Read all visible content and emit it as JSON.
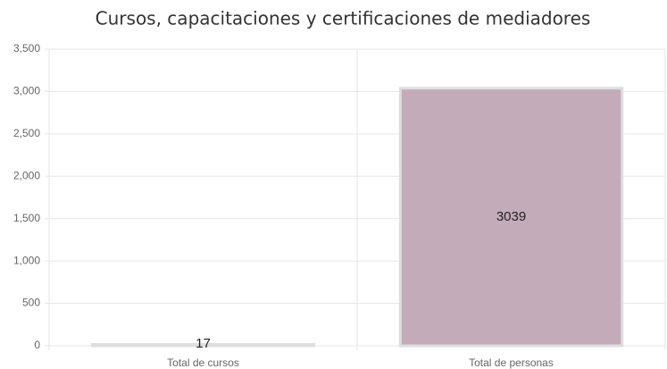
{
  "chart_data": {
    "type": "bar",
    "title": "Cursos, capacitaciones y certificaciones de mediadores",
    "categories": [
      "Total de cursos",
      "Total de personas"
    ],
    "values": [
      17,
      3039
    ],
    "color": "#c4abb9",
    "ylim": [
      0,
      3500
    ],
    "yticks": [
      0,
      500,
      {
        "value": 1000,
        "label": "1,000"
      },
      {
        "value": 1500,
        "label": "1,500"
      },
      {
        "value": 2000,
        "label": "2,000"
      },
      {
        "value": 2500,
        "label": "2,500"
      },
      {
        "value": 3000,
        "label": "3,000"
      },
      {
        "value": 3500,
        "label": "3,500"
      }
    ],
    "grid": true
  }
}
